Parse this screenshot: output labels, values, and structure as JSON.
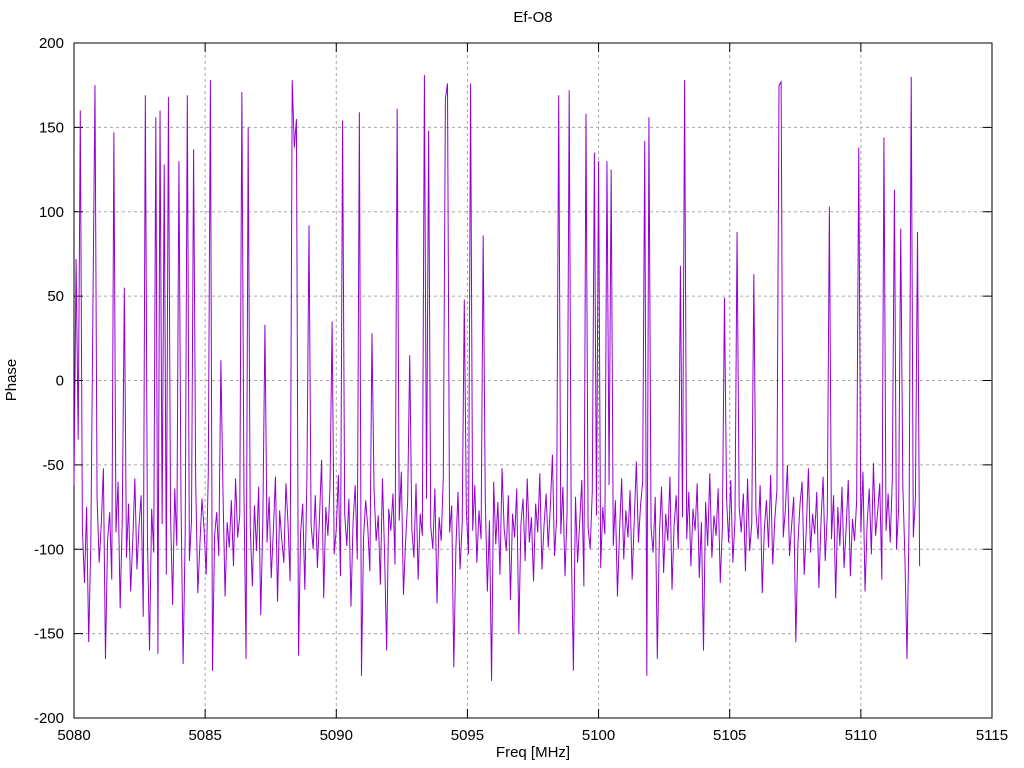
{
  "chart_data": {
    "type": "line",
    "title": "Ef-O8",
    "xlabel": "Freq [MHz]",
    "ylabel": "Phase",
    "xlim": [
      5080,
      5115
    ],
    "ylim": [
      -200,
      200
    ],
    "x_ticks": [
      5080,
      5085,
      5090,
      5095,
      5100,
      5105,
      5110,
      5115
    ],
    "y_ticks": [
      -200,
      -150,
      -100,
      -50,
      0,
      50,
      100,
      150,
      200
    ],
    "grid": true,
    "legend_position": "none",
    "line_color": "#9400d3",
    "grid_color": "#a8a8a8",
    "axis_color": "#000000",
    "series": [
      {
        "name": "phase",
        "x_start": 5080.0,
        "x_step": 0.08,
        "values": [
          -62,
          72,
          -35,
          160,
          -88,
          -120,
          -75,
          -155,
          -98,
          40,
          175,
          -70,
          -108,
          -85,
          -52,
          -165,
          -95,
          -78,
          -118,
          147,
          -90,
          -60,
          -135,
          -82,
          55,
          -105,
          -73,
          -125,
          -95,
          -58,
          -112,
          -86,
          -68,
          -140,
          169,
          -94,
          -160,
          -76,
          -102,
          156,
          -162,
          160,
          -85,
          128,
          -115,
          168,
          -79,
          -133,
          -64,
          -98,
          130,
          -72,
          -168,
          -91,
          169,
          -107,
          -83,
          137,
          -60,
          -126,
          -97,
          -70,
          -88,
          -115,
          -55,
          178,
          -172,
          -92,
          -78,
          -104,
          12,
          -66,
          -128,
          -84,
          -99,
          -71,
          -110,
          -58,
          -93,
          -80,
          171,
          -67,
          -165,
          150,
          -87,
          -122,
          -74,
          -101,
          -63,
          -139,
          -82,
          33,
          -96,
          -69,
          -117,
          -89,
          -57,
          -131,
          -77,
          -94,
          -108,
          -61,
          -85,
          -119,
          178,
          138,
          155,
          -163,
          -90,
          -73,
          -124,
          -59,
          92,
          -86,
          -100,
          -68,
          -111,
          -81,
          -47,
          -129,
          -75,
          -92,
          -64,
          35,
          -103,
          -88,
          -56,
          -116,
          154,
          -79,
          -98,
          -70,
          -134,
          -84,
          -62,
          -106,
          159,
          -175,
          -93,
          -71,
          -87,
          -113,
          28,
          -65,
          -95,
          -80,
          -121,
          -58,
          -102,
          -160,
          -76,
          -89,
          -67,
          -109,
          161,
          -83,
          -54,
          -127,
          -96,
          -72,
          15,
          -88,
          -105,
          -61,
          -118,
          -79,
          -92,
          181,
          -70,
          148,
          -86,
          -100,
          -64,
          -132,
          -81,
          -95,
          -57,
          167,
          176,
          -90,
          -74,
          -170,
          -99,
          -66,
          -112,
          -85,
          48,
          -78,
          -103,
          176,
          -89,
          -62,
          -108,
          -77,
          -94,
          86,
          -70,
          -125,
          -83,
          -178,
          -60,
          -97,
          -72,
          -115,
          -52,
          -88,
          -101,
          -68,
          -130,
          -79,
          -93,
          -64,
          -150,
          -85,
          -70,
          -107,
          -58,
          -96,
          -81,
          -119,
          -73,
          -90,
          -55,
          -112,
          -86,
          -67,
          -99,
          -75,
          -44,
          -104,
          -82,
          169,
          -91,
          -63,
          -116,
          -78,
          172,
          -97,
          -172,
          -69,
          -108,
          -84,
          -59,
          -122,
          158,
          -87,
          -100,
          -66,
          135,
          -80,
          130,
          -111,
          -75,
          -91,
          130,
          -62,
          125,
          -98,
          -71,
          -128,
          -89,
          -58,
          -106,
          -77,
          -93,
          -65,
          -118,
          -83,
          -48,
          -96,
          -74,
          -60,
          142,
          -175,
          156,
          -87,
          -102,
          -69,
          -165,
          -91,
          -63,
          -114,
          -79,
          -95,
          -57,
          -124,
          -86,
          -68,
          -100,
          68,
          -81,
          178,
          -94,
          -66,
          -110,
          -76,
          -89,
          -61,
          -117,
          -84,
          -160,
          -72,
          -98,
          -55,
          -105,
          -80,
          -92,
          -64,
          -120,
          -87,
          49,
          -70,
          -96,
          -59,
          -108,
          -83,
          88,
          -75,
          -90,
          -67,
          -113,
          -58,
          -101,
          -85,
          63,
          -78,
          -94,
          -62,
          -126,
          -88,
          -71,
          -99,
          -56,
          -109,
          -82,
          -65,
          175,
          177,
          -93,
          -77,
          -50,
          -104,
          -86,
          -69,
          -155,
          -97,
          -73,
          -60,
          -115,
          -88,
          -52,
          -102,
          -79,
          -91,
          -66,
          -123,
          -84,
          -57,
          -107,
          -80,
          103,
          -94,
          -68,
          -129,
          -75,
          -98,
          -63,
          -111,
          -87,
          -59,
          -116,
          -82,
          -95,
          -71,
          138,
          -90,
          -54,
          -125,
          -85,
          -64,
          -103,
          -49,
          -92,
          -78,
          -61,
          -118,
          144,
          -89,
          -67,
          -96,
          -58,
          113,
          -100,
          -76,
          90,
          -62,
          -105,
          -165,
          -81,
          180,
          -93,
          -70,
          88,
          -110
        ]
      }
    ]
  }
}
